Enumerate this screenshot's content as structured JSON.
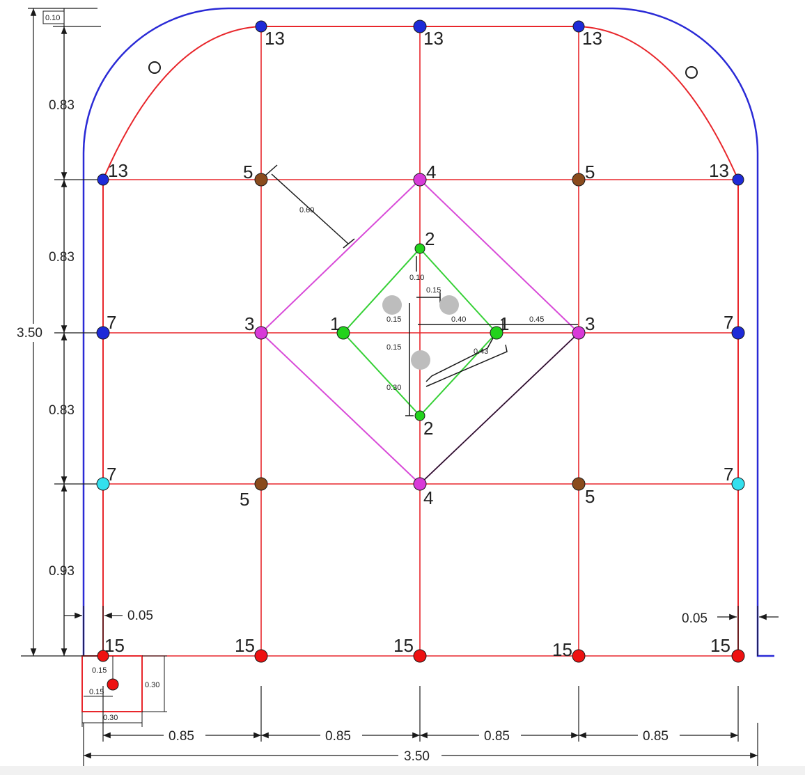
{
  "colors": {
    "grid": "#e8262b",
    "contour": "#2a2ad6",
    "dimension": "#1a1a1a",
    "hole_13": "#1e2bd8",
    "hole_7_upper": "#1e2bd8",
    "hole_7_lower": "#33e0ee",
    "hole_5": "#8a4b1d",
    "hole_4_3": "#d83ad8",
    "hole_2_1": "#22d31c",
    "hole_15": "#ee1111",
    "empty_hole": "#ffffff",
    "large_hole": "#bdbdbd",
    "outer_square": "#d84ad8",
    "inner_square": "#35d035"
  },
  "dimensions": {
    "total_height": "3.50",
    "total_width": "3.50",
    "top_offset": "0.10",
    "spacing_v1": "0.83",
    "spacing_v2": "0.83",
    "spacing_v3": "0.83",
    "spacing_v4": "0.93",
    "spacing_h": [
      "0.85",
      "0.85",
      "0.85",
      "0.85"
    ],
    "edge_offset_left": "0.05",
    "edge_offset_right": "0.05",
    "diag_offset": "0.60",
    "outer_half": "0.45",
    "inner_half": "0.40",
    "inner_diag": "0.43",
    "center_v1": "0.10",
    "center_v2": "0.15",
    "center_v3": "0.15",
    "center_v4": "0.15",
    "center_v5": "0.30",
    "center_h": "0.15",
    "lifter_depth": "0.15",
    "lifter_side": "0.15",
    "lifter_box_w": "0.30",
    "lifter_box_h": "0.30"
  },
  "holes": {
    "roof": [
      "13",
      "13",
      "13"
    ],
    "shoulder": [
      "13",
      "13"
    ],
    "upper_helpers": [
      "5",
      "4",
      "5"
    ],
    "walls_upper": [
      "7",
      "7"
    ],
    "walls_lower": [
      "7",
      "7"
    ],
    "stopers": [
      "3",
      "3"
    ],
    "cut_outer": "1",
    "cut_inner": "1",
    "cut_top": "2",
    "cut_bottom": "2",
    "lower_helpers": [
      "5",
      "4",
      "5"
    ],
    "lifters": [
      "15",
      "15",
      "15",
      "15",
      "15"
    ]
  }
}
